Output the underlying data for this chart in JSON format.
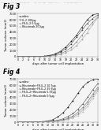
{
  "fig3": {
    "title": "Fig 3",
    "xlabel": "days after tumor cell implantation",
    "ylabel": "Tumor volume (mm3)",
    "ylim": [
      0,
      7000
    ],
    "yticks": [
      0,
      1000,
      2000,
      3000,
      4000,
      5000,
      6000,
      7000
    ],
    "xlim": [
      0,
      30
    ],
    "xticks": [
      0,
      2,
      4,
      6,
      8,
      10,
      12,
      14,
      16,
      18,
      20,
      22,
      24,
      26,
      28,
      30
    ],
    "series": [
      {
        "label": "saline",
        "color": "#000000",
        "marker": "s",
        "x": [
          0,
          2,
          4,
          6,
          8,
          10,
          12,
          14,
          16,
          18,
          20,
          22,
          24,
          26,
          28,
          30
        ],
        "y": [
          10,
          15,
          20,
          30,
          50,
          100,
          200,
          450,
          900,
          1600,
          2500,
          3500,
          4800,
          6000,
          6800,
          7000
        ]
      },
      {
        "label": "IL-2 100μg",
        "color": "#333333",
        "marker": "o",
        "x": [
          0,
          2,
          4,
          6,
          8,
          10,
          12,
          14,
          16,
          18,
          20,
          22,
          24,
          26,
          28,
          30
        ],
        "y": [
          10,
          15,
          20,
          28,
          45,
          90,
          180,
          380,
          750,
          1300,
          2100,
          3200,
          4300,
          5400,
          6200,
          6800
        ]
      },
      {
        "label": "F8-IL-2 0.5μg",
        "color": "#666666",
        "marker": "^",
        "x": [
          0,
          2,
          4,
          6,
          8,
          10,
          12,
          14,
          16,
          18,
          20,
          22,
          24,
          26,
          28,
          30
        ],
        "y": [
          10,
          12,
          18,
          25,
          40,
          70,
          130,
          250,
          500,
          900,
          1500,
          2400,
          3500,
          4600,
          5600,
          6500
        ]
      },
      {
        "label": "Rituximab 200μg",
        "color": "#999999",
        "marker": "D",
        "x": [
          0,
          2,
          4,
          6,
          8,
          10,
          12,
          14,
          16,
          18,
          20,
          22,
          24,
          26,
          28,
          30
        ],
        "y": [
          10,
          12,
          15,
          20,
          30,
          55,
          100,
          180,
          350,
          650,
          1100,
          1800,
          2800,
          3900,
          5200,
          6400
        ]
      }
    ]
  },
  "fig4": {
    "title": "Fig 4",
    "xlabel": "days after tumor cell implantation",
    "ylabel": "Tumor volume (mm3)",
    "ylim": [
      0,
      7000
    ],
    "yticks": [
      0,
      1000,
      2000,
      3000,
      4000,
      5000,
      6000,
      7000
    ],
    "xlim": [
      0,
      32
    ],
    "xticks": [
      0,
      2,
      4,
      6,
      8,
      10,
      12,
      14,
      16,
      18,
      20,
      22,
      24,
      26,
      28,
      30,
      32
    ],
    "series": [
      {
        "label": "saline",
        "color": "#000000",
        "marker": "s",
        "x": [
          0,
          2,
          4,
          6,
          8,
          10,
          12,
          14,
          16,
          18,
          20,
          22,
          24,
          26,
          28,
          30,
          32
        ],
        "y": [
          10,
          15,
          20,
          30,
          50,
          100,
          200,
          420,
          850,
          1500,
          2400,
          3500,
          4700,
          5800,
          6500,
          6900,
          7000
        ]
      },
      {
        "label": "Rituximab+F8-IL-2 10.7μg",
        "color": "#333333",
        "marker": "o",
        "x": [
          0,
          2,
          4,
          6,
          8,
          10,
          12,
          14,
          16,
          18,
          20,
          22,
          24,
          26,
          28,
          30,
          32
        ],
        "y": [
          10,
          12,
          15,
          22,
          35,
          60,
          100,
          180,
          320,
          550,
          900,
          1400,
          2100,
          3000,
          4100,
          5300,
          6300
        ]
      },
      {
        "label": "Rituximab+F8-IL-2 35.6μg",
        "color": "#555555",
        "marker": "^",
        "x": [
          0,
          2,
          4,
          6,
          8,
          10,
          12,
          14,
          16,
          18,
          20,
          22,
          24,
          26,
          28,
          30,
          32
        ],
        "y": [
          10,
          12,
          14,
          18,
          28,
          45,
          80,
          130,
          220,
          380,
          620,
          1000,
          1600,
          2400,
          3400,
          4600,
          5700
        ]
      },
      {
        "label": "F8-IL-2+Rituximab 5.35μg",
        "color": "#888888",
        "marker": "v",
        "x": [
          0,
          2,
          4,
          6,
          8,
          10,
          12,
          14,
          16,
          18,
          20,
          22,
          24,
          26,
          28,
          30,
          32
        ],
        "y": [
          10,
          11,
          13,
          16,
          24,
          38,
          65,
          110,
          185,
          310,
          510,
          820,
          1300,
          2000,
          3000,
          4200,
          5400
        ]
      },
      {
        "label": "F8-IL-2+Rituximab 0.5μg",
        "color": "#bbbbbb",
        "marker": "D",
        "x": [
          0,
          2,
          4,
          6,
          8,
          10,
          12,
          14,
          16,
          18,
          20,
          22,
          24,
          26,
          28,
          30,
          32
        ],
        "y": [
          10,
          10,
          12,
          14,
          20,
          32,
          55,
          90,
          150,
          250,
          410,
          670,
          1080,
          1700,
          2600,
          3800,
          5100
        ]
      }
    ]
  },
  "header_text": "Human Application Publication    Aug. 23, 2005  Sheet 3 of 9    US 2005/0180xxx A1",
  "background_color": "#f5f5f5",
  "font_size": 3.5
}
